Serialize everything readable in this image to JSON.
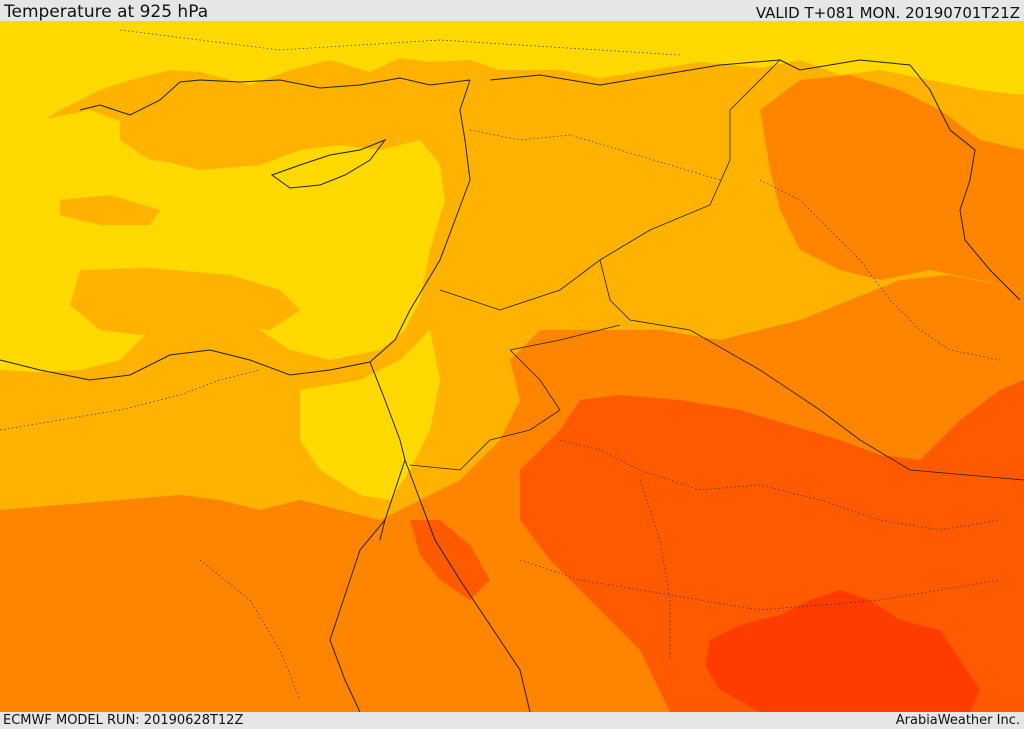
{
  "header": {
    "title": "Temperature at 925 hPa",
    "valid_time": "VALID T+081 MON. 20190701T21Z"
  },
  "footer": {
    "model_run": "ECMWF MODEL RUN: 20190628T12Z",
    "credit": "ArabiaWeather Inc."
  },
  "colors": {
    "band_yellow": "#ffd900",
    "band_amber": "#ffb300",
    "band_orange": "#ff8400",
    "band_deep_orange": "#ff5a00",
    "band_red": "#ff3c00",
    "coastline": "#222222"
  }
}
